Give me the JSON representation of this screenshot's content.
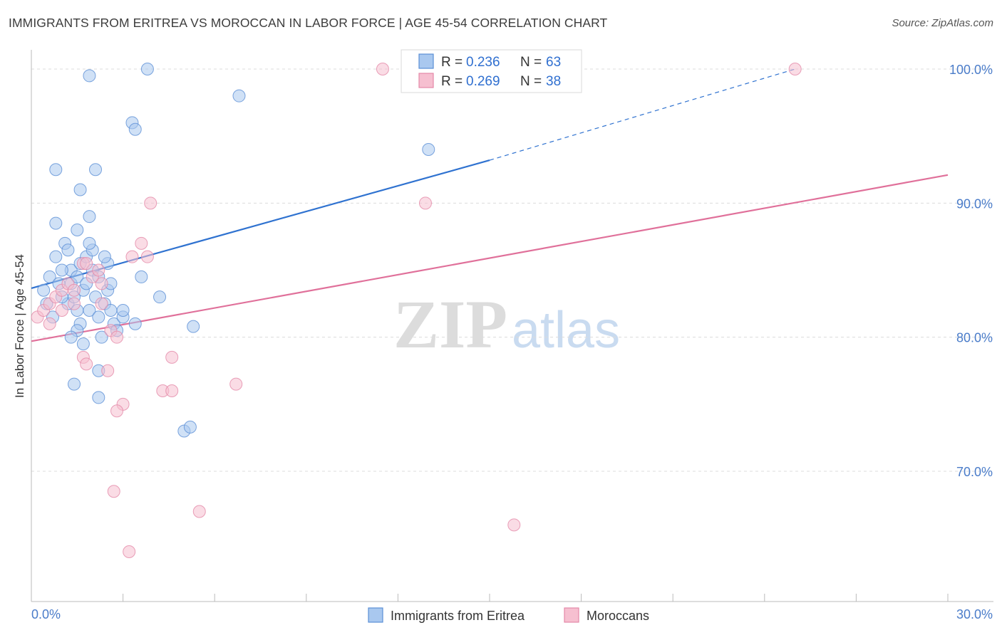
{
  "title": "IMMIGRANTS FROM ERITREA VS MOROCCAN IN LABOR FORCE | AGE 45-54 CORRELATION CHART",
  "source": "Source: ZipAtlas.com",
  "watermark": {
    "zip": "ZIP",
    "atlas": "atlas"
  },
  "stats": {
    "r_label": "R =",
    "n_label": "N =",
    "rows": [
      {
        "r": "0.236",
        "n": "63",
        "color": "#9ec3ee"
      },
      {
        "r": "0.269",
        "n": "38",
        "color": "#f5b8cc"
      }
    ]
  },
  "colors": {
    "blue_fill": "#a9c8ef",
    "blue_stroke": "#5b8fd6",
    "blue_line": "#2f72d0",
    "pink_fill": "#f6bfd0",
    "pink_stroke": "#e488a8",
    "pink_line": "#e0709a",
    "grid": "#dcdcdc",
    "tick_text": "#4a7cc9"
  },
  "chart_data": {
    "type": "scatter",
    "xlabel": "",
    "ylabel": "In Labor Force | Age 45-54",
    "xlim": [
      0,
      30
    ],
    "ylim": [
      60,
      101.5
    ],
    "x_tick_labels": [
      "0.0%",
      "30.0%"
    ],
    "y_ticks": [
      70,
      80,
      90,
      100
    ],
    "y_tick_labels": [
      "70.0%",
      "80.0%",
      "90.0%",
      "100.0%"
    ],
    "grid": true,
    "legend_position": "bottom-center",
    "series": [
      {
        "name": "Immigrants from Eritrea",
        "r": 0.236,
        "n": 63,
        "trend": {
          "x0": 0,
          "y0": 83.65,
          "x1": 15.0,
          "y1": 93.2,
          "dashed_to_x": 25.0,
          "dashed_to_y": 100.0
        },
        "points": [
          [
            1.2,
            82.5
          ],
          [
            1.3,
            84.0
          ],
          [
            1.3,
            85.0
          ],
          [
            1.4,
            83.0
          ],
          [
            1.5,
            82.0
          ],
          [
            1.5,
            84.5
          ],
          [
            1.6,
            85.5
          ],
          [
            1.6,
            81.0
          ],
          [
            1.7,
            83.5
          ],
          [
            1.8,
            86.0
          ],
          [
            1.8,
            84.0
          ],
          [
            1.9,
            82.0
          ],
          [
            2.0,
            85.0
          ],
          [
            2.0,
            86.5
          ],
          [
            2.1,
            83.0
          ],
          [
            2.2,
            81.5
          ],
          [
            2.2,
            84.5
          ],
          [
            2.3,
            80.0
          ],
          [
            2.4,
            82.5
          ],
          [
            2.5,
            85.5
          ],
          [
            2.5,
            83.5
          ],
          [
            2.6,
            84.0
          ],
          [
            2.6,
            82.0
          ],
          [
            2.7,
            81.0
          ],
          [
            1.9,
            87.0
          ],
          [
            2.4,
            86.0
          ],
          [
            2.8,
            80.5
          ],
          [
            3.0,
            81.5
          ],
          [
            0.6,
            84.5
          ],
          [
            0.8,
            86.0
          ],
          [
            1.0,
            83.0
          ],
          [
            1.1,
            87.0
          ],
          [
            1.0,
            85.0
          ],
          [
            1.2,
            86.5
          ],
          [
            1.5,
            80.5
          ],
          [
            1.7,
            79.5
          ],
          [
            0.4,
            83.5
          ],
          [
            0.5,
            82.5
          ],
          [
            0.7,
            81.5
          ],
          [
            0.9,
            84.0
          ],
          [
            1.3,
            80.0
          ],
          [
            1.6,
            91.0
          ],
          [
            1.9,
            89.0
          ],
          [
            1.5,
            88.0
          ],
          [
            2.1,
            92.5
          ],
          [
            0.8,
            88.5
          ],
          [
            3.0,
            82.0
          ],
          [
            3.4,
            81.0
          ],
          [
            3.6,
            84.5
          ],
          [
            4.2,
            83.0
          ],
          [
            5.3,
            80.8
          ],
          [
            1.9,
            99.5
          ],
          [
            3.3,
            96.0
          ],
          [
            3.4,
            95.5
          ],
          [
            3.8,
            100.0
          ],
          [
            6.8,
            98.0
          ],
          [
            13.0,
            94.0
          ],
          [
            0.8,
            92.5
          ],
          [
            2.2,
            75.5
          ],
          [
            1.4,
            76.5
          ],
          [
            5.0,
            73.0
          ],
          [
            5.2,
            73.3
          ],
          [
            2.2,
            77.5
          ]
        ]
      },
      {
        "name": "Moroccans",
        "r": 0.269,
        "n": 38,
        "trend": {
          "x0": 0,
          "y0": 79.7,
          "x1": 30.0,
          "y1": 92.1
        },
        "points": [
          [
            0.2,
            81.5
          ],
          [
            0.4,
            82.0
          ],
          [
            0.6,
            82.5
          ],
          [
            0.8,
            83.0
          ],
          [
            1.0,
            83.5
          ],
          [
            1.2,
            84.0
          ],
          [
            1.4,
            82.5
          ],
          [
            1.7,
            85.5
          ],
          [
            1.8,
            85.5
          ],
          [
            2.3,
            84.0
          ],
          [
            2.3,
            82.5
          ],
          [
            2.6,
            80.5
          ],
          [
            2.8,
            80.0
          ],
          [
            3.3,
            86.0
          ],
          [
            3.6,
            87.0
          ],
          [
            3.8,
            86.0
          ],
          [
            3.9,
            90.0
          ],
          [
            1.7,
            78.5
          ],
          [
            1.8,
            78.0
          ],
          [
            2.5,
            77.5
          ],
          [
            3.0,
            75.0
          ],
          [
            2.8,
            74.5
          ],
          [
            4.3,
            76.0
          ],
          [
            4.6,
            76.0
          ],
          [
            4.6,
            78.5
          ],
          [
            6.7,
            76.5
          ],
          [
            2.7,
            68.5
          ],
          [
            3.2,
            64.0
          ],
          [
            5.5,
            67.0
          ],
          [
            12.9,
            90.0
          ],
          [
            15.8,
            66.0
          ],
          [
            11.5,
            100.0
          ],
          [
            25.0,
            100.0
          ],
          [
            2.0,
            84.5
          ],
          [
            1.4,
            83.5
          ],
          [
            1.0,
            82.0
          ],
          [
            2.2,
            85.0
          ],
          [
            0.6,
            81.0
          ]
        ]
      }
    ]
  }
}
